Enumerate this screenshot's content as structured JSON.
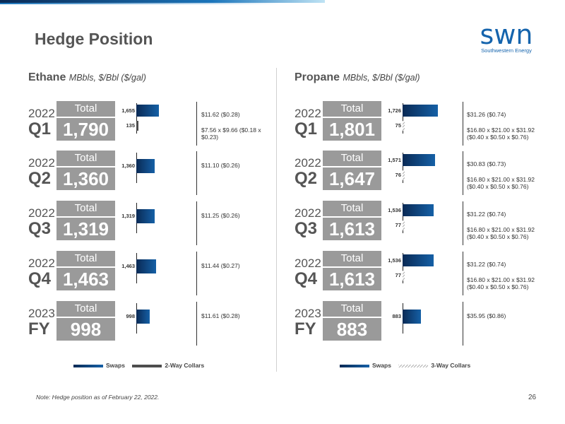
{
  "page": {
    "title": "Hedge Position",
    "logo_mark": "swn",
    "logo_sub": "Southwestern Energy",
    "note": "Note: Hedge position as of February 22, 2022.",
    "page_number": "26",
    "total_label": "Total"
  },
  "colors": {
    "swap": "#0a2a55",
    "collar2": "#4d4d4d",
    "box": "#9a9a9a"
  },
  "chart_data": [
    {
      "type": "bar",
      "title": "Ethane",
      "units": "MBbls, $/Bbl ($/gal)",
      "series": [
        {
          "name": "Swaps"
        },
        {
          "name": "2-Way Collars"
        }
      ],
      "periods": [
        {
          "year": "2022",
          "period": "Q1",
          "total": "1,790",
          "rows": [
            {
              "series": "Swaps",
              "value": 1655,
              "label": "1,655",
              "price": "$11.62 ($0.28)"
            },
            {
              "series": "2-Way Collars",
              "value": 135,
              "label": "135",
              "price": "$7.56 x $9.66 ($0.18 x $0.23)"
            }
          ]
        },
        {
          "year": "2022",
          "period": "Q2",
          "total": "1,360",
          "rows": [
            {
              "series": "Swaps",
              "value": 1360,
              "label": "1,360",
              "price": "$11.10 ($0.26)"
            }
          ]
        },
        {
          "year": "2022",
          "period": "Q3",
          "total": "1,319",
          "rows": [
            {
              "series": "Swaps",
              "value": 1319,
              "label": "1,319",
              "price": "$11.25 ($0.26)"
            }
          ]
        },
        {
          "year": "2022",
          "period": "Q4",
          "total": "1,463",
          "rows": [
            {
              "series": "Swaps",
              "value": 1463,
              "label": "1,463",
              "price": "$11.44 ($0.27)"
            }
          ]
        },
        {
          "year": "2023",
          "period": "FY",
          "total": "998",
          "rows": [
            {
              "series": "Swaps",
              "value": 998,
              "label": "998",
              "price": "$11.61 ($0.28)"
            }
          ]
        }
      ]
    },
    {
      "type": "bar",
      "title": "Propane",
      "units": "MBbls, $/Bbl ($/gal)",
      "series": [
        {
          "name": "Swaps"
        },
        {
          "name": "3-Way Collars"
        }
      ],
      "periods": [
        {
          "year": "2022",
          "period": "Q1",
          "total": "1,801",
          "rows": [
            {
              "series": "Swaps",
              "value": 1726,
              "label": "1,726",
              "price": "$31.26 ($0.74)"
            },
            {
              "series": "3-Way Collars",
              "value": 75,
              "label": "75",
              "price": "$16.80 x $21.00 x $31.92 ($0.40 x $0.50 x $0.76)"
            }
          ]
        },
        {
          "year": "2022",
          "period": "Q2",
          "total": "1,647",
          "rows": [
            {
              "series": "Swaps",
              "value": 1571,
              "label": "1,571",
              "price": "$30.83 ($0.73)"
            },
            {
              "series": "3-Way Collars",
              "value": 76,
              "label": "76",
              "price": "$16.80 x $21.00 x $31.92 ($0.40 x $0.50 x $0.76)"
            }
          ]
        },
        {
          "year": "2022",
          "period": "Q3",
          "total": "1,613",
          "rows": [
            {
              "series": "Swaps",
              "value": 1536,
              "label": "1,536",
              "price": "$31.22 ($0.74)"
            },
            {
              "series": "3-Way Collars",
              "value": 77,
              "label": "77",
              "price": "$16.80 x $21.00 x $31.92 ($0.40 x $0.50 x $0.76)"
            }
          ]
        },
        {
          "year": "2022",
          "period": "Q4",
          "total": "1,613",
          "rows": [
            {
              "series": "Swaps",
              "value": 1536,
              "label": "1,536",
              "price": "$31.22 ($0.74)"
            },
            {
              "series": "3-Way Collars",
              "value": 77,
              "label": "77",
              "price": "$16.80 x $21.00 x $31.92 ($0.40 x $0.50 x $0.76)"
            }
          ]
        },
        {
          "year": "2023",
          "period": "FY",
          "total": "883",
          "rows": [
            {
              "series": "Swaps",
              "value": 883,
              "label": "883",
              "price": "$35.95 ($0.86)"
            }
          ]
        }
      ]
    }
  ]
}
